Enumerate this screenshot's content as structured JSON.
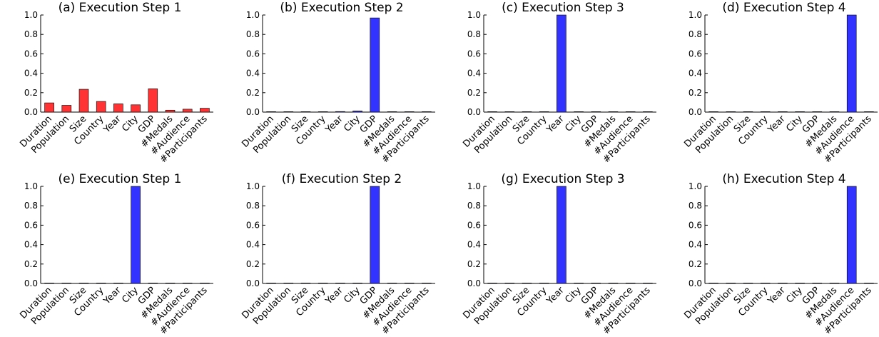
{
  "chart_data": [
    {
      "type": "bar",
      "title": "(a) Execution Step 1",
      "categories": [
        "Duration",
        "Population",
        "Size",
        "Country",
        "Year",
        "City",
        "GDP",
        "#Medals",
        "#Audience",
        "#Participants"
      ],
      "values": [
        0.095,
        0.07,
        0.235,
        0.11,
        0.085,
        0.075,
        0.24,
        0.02,
        0.03,
        0.04
      ],
      "ylim": [
        0,
        1.0
      ],
      "yticks": [
        "0.0",
        "0.2",
        "0.4",
        "0.6",
        "0.8",
        "1.0"
      ],
      "color": "#ff3333",
      "xlabel": "",
      "ylabel": ""
    },
    {
      "type": "bar",
      "title": "(b) Execution Step 2",
      "categories": [
        "Duration",
        "Population",
        "Size",
        "Country",
        "Year",
        "City",
        "GDP",
        "#Medals",
        "#Audience",
        "#Participants"
      ],
      "values": [
        0.002,
        0.003,
        0.003,
        0.002,
        0.006,
        0.012,
        0.97,
        0.002,
        0.002,
        0.002
      ],
      "ylim": [
        0,
        1.0
      ],
      "yticks": [
        "0.0",
        "0.2",
        "0.4",
        "0.6",
        "0.8",
        "1.0"
      ],
      "color": "#3333ff",
      "xlabel": "",
      "ylabel": ""
    },
    {
      "type": "bar",
      "title": "(c) Execution Step 3",
      "categories": [
        "Duration",
        "Population",
        "Size",
        "Country",
        "Year",
        "City",
        "GDP",
        "#Medals",
        "#Audience",
        "#Participants"
      ],
      "values": [
        0.001,
        0.001,
        0.001,
        0.001,
        1.0,
        0.003,
        0.002,
        0.001,
        0.001,
        0.001
      ],
      "ylim": [
        0,
        1.0
      ],
      "yticks": [
        "0.0",
        "0.2",
        "0.4",
        "0.6",
        "0.8",
        "1.0"
      ],
      "color": "#3333ff",
      "xlabel": "",
      "ylabel": ""
    },
    {
      "type": "bar",
      "title": "(d) Execution Step 4",
      "categories": [
        "Duration",
        "Population",
        "Size",
        "Country",
        "Year",
        "City",
        "GDP",
        "#Medals",
        "#Audience",
        "#Participants"
      ],
      "values": [
        0.001,
        0.001,
        0.001,
        0.001,
        0.001,
        0.001,
        0.001,
        0.001,
        1.0,
        0.001
      ],
      "ylim": [
        0,
        1.0
      ],
      "yticks": [
        "0.0",
        "0.2",
        "0.4",
        "0.6",
        "0.8",
        "1.0"
      ],
      "color": "#3333ff",
      "xlabel": "",
      "ylabel": ""
    },
    {
      "type": "bar",
      "title": "(e) Execution Step 1",
      "categories": [
        "Duration",
        "Population",
        "Size",
        "Country",
        "Year",
        "City",
        "GDP",
        "#Medals",
        "#Audience",
        "#Participants"
      ],
      "values": [
        0.001,
        0.001,
        0.001,
        0.001,
        0.001,
        1.0,
        0.001,
        0.001,
        0.001,
        0.001
      ],
      "ylim": [
        0,
        1.0
      ],
      "yticks": [
        "0.0",
        "0.2",
        "0.4",
        "0.6",
        "0.8",
        "1.0"
      ],
      "color": "#3333ff",
      "xlabel": "",
      "ylabel": ""
    },
    {
      "type": "bar",
      "title": "(f) Execution Step 2",
      "categories": [
        "Duration",
        "Population",
        "Size",
        "Country",
        "Year",
        "City",
        "GDP",
        "#Medals",
        "#Audience",
        "#Participants"
      ],
      "values": [
        0.001,
        0.001,
        0.001,
        0.001,
        0.001,
        0.001,
        1.0,
        0.001,
        0.001,
        0.001
      ],
      "ylim": [
        0,
        1.0
      ],
      "yticks": [
        "0.0",
        "0.2",
        "0.4",
        "0.6",
        "0.8",
        "1.0"
      ],
      "color": "#3333ff",
      "xlabel": "",
      "ylabel": ""
    },
    {
      "type": "bar",
      "title": "(g) Execution Step 3",
      "categories": [
        "Duration",
        "Population",
        "Size",
        "Country",
        "Year",
        "City",
        "GDP",
        "#Medals",
        "#Audience",
        "#Participants"
      ],
      "values": [
        0.001,
        0.001,
        0.001,
        0.001,
        1.0,
        0.001,
        0.001,
        0.001,
        0.001,
        0.001
      ],
      "ylim": [
        0,
        1.0
      ],
      "yticks": [
        "0.0",
        "0.2",
        "0.4",
        "0.6",
        "0.8",
        "1.0"
      ],
      "color": "#3333ff",
      "xlabel": "",
      "ylabel": ""
    },
    {
      "type": "bar",
      "title": "(h) Execution Step 4",
      "categories": [
        "Duration",
        "Population",
        "Size",
        "Country",
        "Year",
        "City",
        "GDP",
        "#Medals",
        "#Audience",
        "#Participants"
      ],
      "values": [
        0.001,
        0.001,
        0.001,
        0.001,
        0.001,
        0.001,
        0.001,
        0.001,
        1.0,
        0.001
      ],
      "ylim": [
        0,
        1.0
      ],
      "yticks": [
        "0.0",
        "0.2",
        "0.4",
        "0.6",
        "0.8",
        "1.0"
      ],
      "color": "#3333ff",
      "xlabel": "",
      "ylabel": ""
    }
  ]
}
